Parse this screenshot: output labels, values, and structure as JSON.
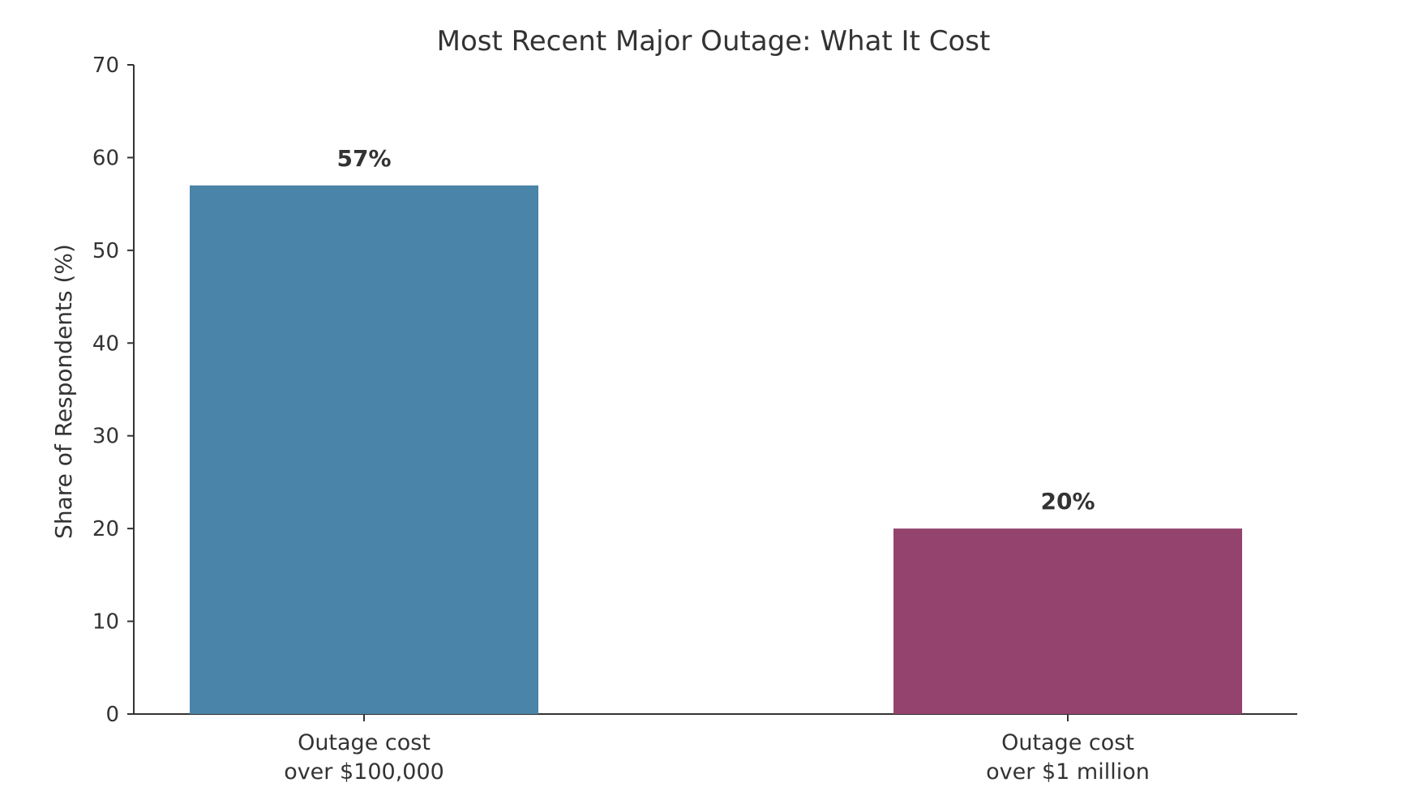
{
  "chart_data": {
    "type": "bar",
    "title": "Most Recent Major Outage: What It Cost",
    "xlabel": "",
    "ylabel": "Share of Respondents (%)",
    "ylim": [
      0,
      70
    ],
    "yticks": [
      0,
      10,
      20,
      30,
      40,
      50,
      60,
      70
    ],
    "categories": [
      [
        "Outage cost",
        "over $100,000"
      ],
      [
        "Outage cost",
        "over $1 million"
      ]
    ],
    "values": [
      57,
      20
    ],
    "data_labels": [
      "57%",
      "20%"
    ],
    "colors": [
      "#4A84A8",
      "#93436D"
    ],
    "grid": false,
    "legend": "none"
  }
}
